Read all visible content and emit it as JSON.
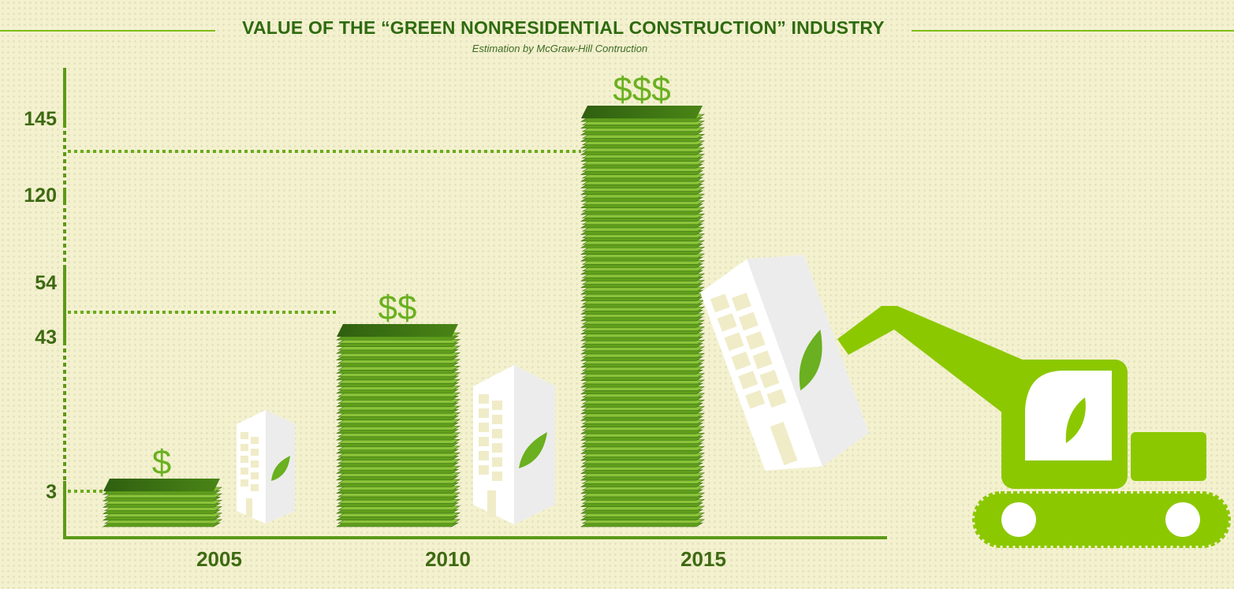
{
  "title": "VALUE OF THE “GREEN NONRESIDENTIAL CONSTRUCTION” INDUSTRY",
  "subtitle": "Estimation by McGraw-Hill Contruction",
  "colors": {
    "background": "#f4f1cf",
    "accent": "#7fbd1c",
    "dark_green": "#3e6a12",
    "bill_green": "#66a31e",
    "excavator": "#8cc800"
  },
  "icons": [
    "building-icon",
    "leaf-icon",
    "excavator-icon",
    "money-stack-icon"
  ],
  "chart_data": {
    "type": "bar",
    "title": "VALUE OF THE “GREEN NONRESIDENTIAL CONSTRUCTION” INDUSTRY",
    "subtitle": "Estimation by McGraw-Hill Contruction",
    "xlabel": "",
    "ylabel": "",
    "categories": [
      "2005",
      "2010",
      "2015"
    ],
    "values": [
      3,
      43,
      145
    ],
    "marker_values": [
      3,
      54,
      145
    ],
    "value_symbols": [
      "$",
      "$$",
      "$$$"
    ],
    "yticks": [
      3,
      43,
      54,
      120,
      145
    ],
    "grid": false,
    "legend": "none"
  }
}
